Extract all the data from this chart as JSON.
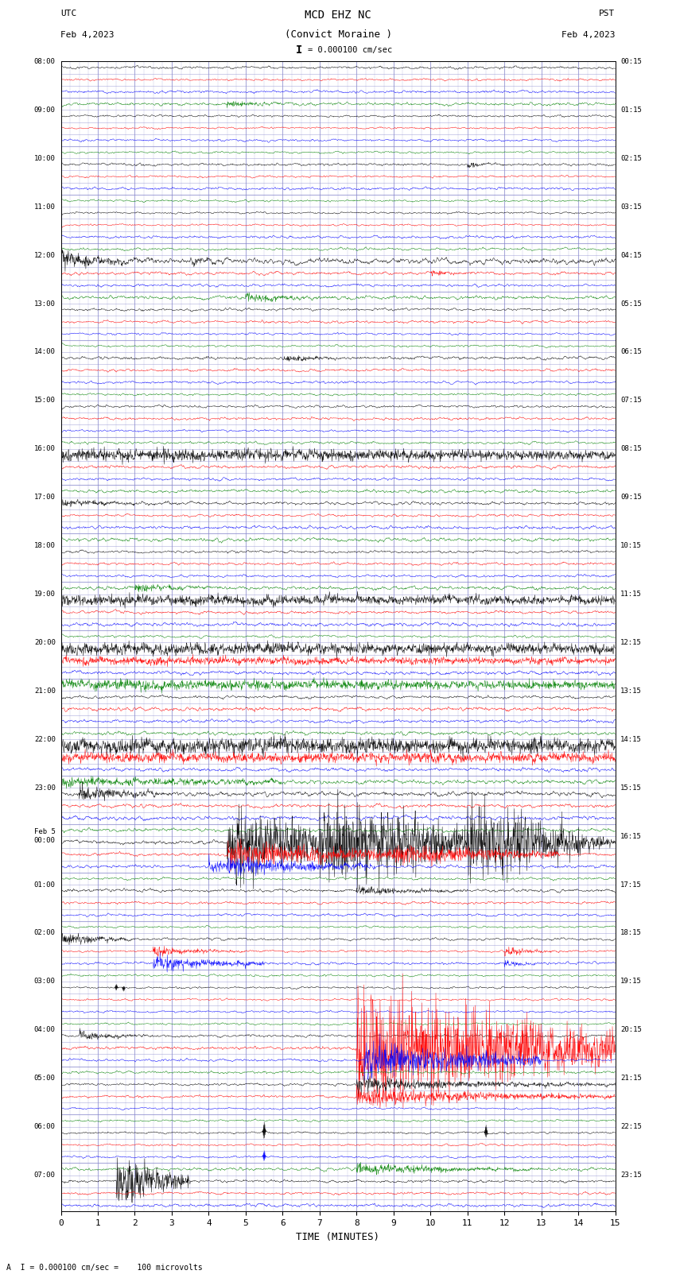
{
  "title_line1": "MCD EHZ NC",
  "title_line2": "(Convict Moraine )",
  "scale_label": "= 0.000100 cm/sec",
  "xlabel": "TIME (MINUTES)",
  "footer": "A  I = 0.000100 cm/sec =    100 microvolts",
  "left_times": [
    "08:00",
    "",
    "",
    "",
    "09:00",
    "",
    "",
    "",
    "10:00",
    "",
    "",
    "",
    "11:00",
    "",
    "",
    "",
    "12:00",
    "",
    "",
    "",
    "13:00",
    "",
    "",
    "",
    "14:00",
    "",
    "",
    "",
    "15:00",
    "",
    "",
    "",
    "16:00",
    "",
    "",
    "",
    "17:00",
    "",
    "",
    "",
    "18:00",
    "",
    "",
    "",
    "19:00",
    "",
    "",
    "",
    "20:00",
    "",
    "",
    "",
    "21:00",
    "",
    "",
    "",
    "22:00",
    "",
    "",
    "",
    "23:00",
    "",
    "",
    "",
    "Feb 5\n00:00",
    "",
    "",
    "",
    "01:00",
    "",
    "",
    "",
    "02:00",
    "",
    "",
    "",
    "03:00",
    "",
    "",
    "",
    "04:00",
    "",
    "",
    "",
    "05:00",
    "",
    "",
    "",
    "06:00",
    "",
    "",
    "",
    "07:00",
    "",
    ""
  ],
  "right_times": [
    "00:15",
    "",
    "",
    "",
    "01:15",
    "",
    "",
    "",
    "02:15",
    "",
    "",
    "",
    "03:15",
    "",
    "",
    "",
    "04:15",
    "",
    "",
    "",
    "05:15",
    "",
    "",
    "",
    "06:15",
    "",
    "",
    "",
    "07:15",
    "",
    "",
    "",
    "08:15",
    "",
    "",
    "",
    "09:15",
    "",
    "",
    "",
    "10:15",
    "",
    "",
    "",
    "11:15",
    "",
    "",
    "",
    "12:15",
    "",
    "",
    "",
    "13:15",
    "",
    "",
    "",
    "14:15",
    "",
    "",
    "",
    "15:15",
    "",
    "",
    "",
    "16:15",
    "",
    "",
    "",
    "17:15",
    "",
    "",
    "",
    "18:15",
    "",
    "",
    "",
    "19:15",
    "",
    "",
    "",
    "20:15",
    "",
    "",
    "",
    "21:15",
    "",
    "",
    "",
    "22:15",
    "",
    "",
    "",
    "23:15",
    "",
    ""
  ],
  "n_rows": 95,
  "n_pts": 1800,
  "bg_color": "#ffffff",
  "grid_color": "#8888cc",
  "colors_cycle": [
    "black",
    "red",
    "blue",
    "green"
  ],
  "fig_width": 8.5,
  "fig_height": 16.13,
  "xmin": 0,
  "xmax": 15
}
